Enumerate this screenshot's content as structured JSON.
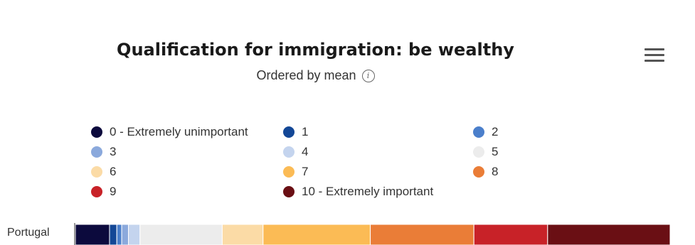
{
  "chart_data": {
    "type": "bar",
    "stacked": true,
    "orientation": "horizontal",
    "normalized": "percent",
    "title": "Qualification for immigration: be wealthy",
    "subtitle": "Ordered by mean",
    "categories": [
      "Portugal"
    ],
    "series": [
      {
        "name": "0 - Extremely unimportant",
        "color": "#0c0a3d",
        "values": [
          5.6
        ]
      },
      {
        "name": "1",
        "color": "#134796",
        "values": [
          1.2
        ]
      },
      {
        "name": "2",
        "color": "#4b7fcb",
        "values": [
          0.8
        ]
      },
      {
        "name": "3",
        "color": "#8ba9dc",
        "values": [
          1.1
        ]
      },
      {
        "name": "4",
        "color": "#c4d4ee",
        "values": [
          1.9
        ]
      },
      {
        "name": "5",
        "color": "#ececec",
        "values": [
          13.5
        ]
      },
      {
        "name": "6",
        "color": "#fbdba6",
        "values": [
          6.7
        ]
      },
      {
        "name": "7",
        "color": "#fbbb55",
        "values": [
          17.6
        ]
      },
      {
        "name": "8",
        "color": "#ea7d37",
        "values": [
          17.0
        ]
      },
      {
        "name": "9",
        "color": "#c82228",
        "values": [
          12.1
        ]
      },
      {
        "name": "10 - Extremely important",
        "color": "#6a0f14",
        "values": [
          20.1
        ]
      }
    ],
    "legend_position": "top",
    "xlim": [
      0,
      100
    ]
  },
  "menu_icon": "hamburger-menu-icon",
  "info_icon": "info-icon",
  "info_glyph": "i"
}
